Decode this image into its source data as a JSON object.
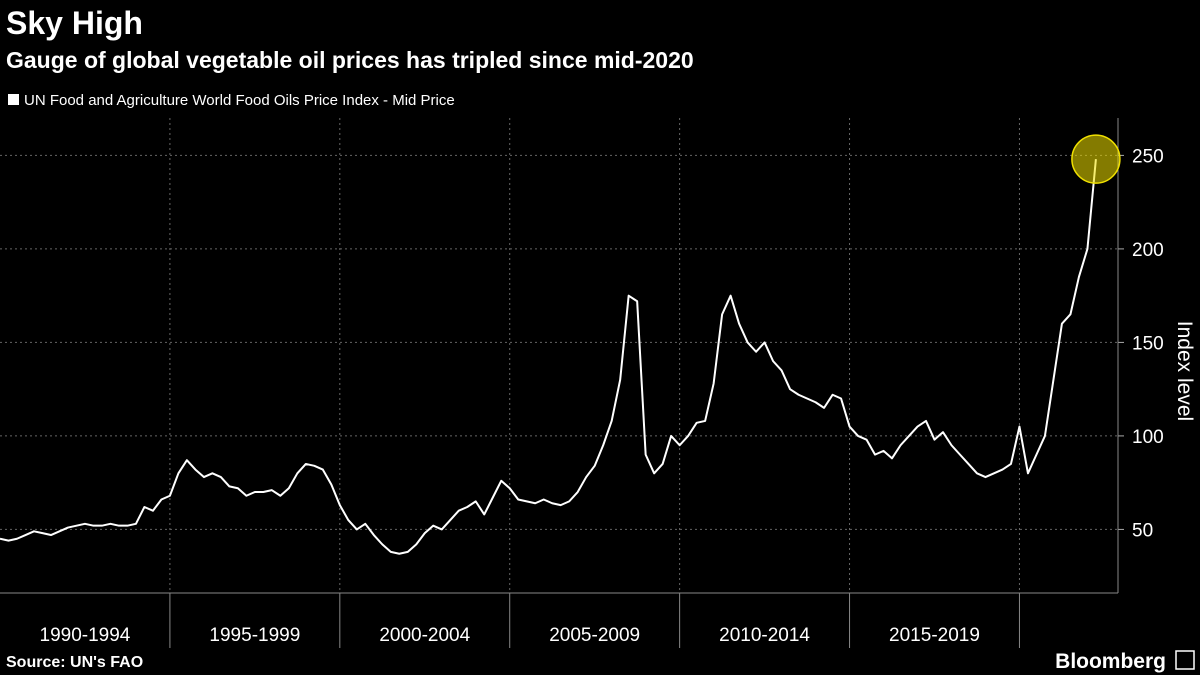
{
  "chart_data": {
    "type": "line",
    "title": "Sky High",
    "subtitle": "Gauge of global vegetable oil prices has tripled since mid-2020",
    "y_axis_label": "Index level",
    "source": "Source: UN's FAO",
    "brand": "Bloomberg",
    "xlim": [
      1990,
      2022.9
    ],
    "ylim": [
      16,
      270
    ],
    "yticks": [
      50,
      100,
      150,
      200,
      250
    ],
    "grid": true,
    "x_periods": [
      {
        "label": "1990-1994",
        "start": 1990,
        "end": 1995
      },
      {
        "label": "1995-1999",
        "start": 1995,
        "end": 2000
      },
      {
        "label": "2000-2004",
        "start": 2000,
        "end": 2005
      },
      {
        "label": "2005-2009",
        "start": 2005,
        "end": 2010
      },
      {
        "label": "2010-2014",
        "start": 2010,
        "end": 2015
      },
      {
        "label": "2015-2019",
        "start": 2015,
        "end": 2020
      }
    ],
    "highlight_color": "#f0e000",
    "x": [
      1990,
      1990.25,
      1990.5,
      1990.75,
      1991,
      1991.25,
      1991.5,
      1991.75,
      1992,
      1992.25,
      1992.5,
      1992.75,
      1993,
      1993.25,
      1993.5,
      1993.75,
      1994,
      1994.25,
      1994.5,
      1994.75,
      1995,
      1995.25,
      1995.5,
      1995.75,
      1996,
      1996.25,
      1996.5,
      1996.75,
      1997,
      1997.25,
      1997.5,
      1997.75,
      1998,
      1998.25,
      1998.5,
      1998.75,
      1999,
      1999.25,
      1999.5,
      1999.75,
      2000,
      2000.25,
      2000.5,
      2000.75,
      2001,
      2001.25,
      2001.5,
      2001.75,
      2002,
      2002.25,
      2002.5,
      2002.75,
      2003,
      2003.25,
      2003.5,
      2003.75,
      2004,
      2004.25,
      2004.5,
      2004.75,
      2005,
      2005.25,
      2005.5,
      2005.75,
      2006,
      2006.25,
      2006.5,
      2006.75,
      2007,
      2007.25,
      2007.5,
      2007.75,
      2008,
      2008.25,
      2008.5,
      2008.75,
      2009,
      2009.25,
      2009.5,
      2009.75,
      2010,
      2010.25,
      2010.5,
      2010.75,
      2011,
      2011.25,
      2011.5,
      2011.75,
      2012,
      2012.25,
      2012.5,
      2012.75,
      2013,
      2013.25,
      2013.5,
      2013.75,
      2014,
      2014.25,
      2014.5,
      2014.75,
      2015,
      2015.25,
      2015.5,
      2015.75,
      2016,
      2016.25,
      2016.5,
      2016.75,
      2017,
      2017.25,
      2017.5,
      2017.75,
      2018,
      2018.25,
      2018.5,
      2018.75,
      2019,
      2019.25,
      2019.5,
      2019.75,
      2020,
      2020.25,
      2020.5,
      2020.75,
      2021,
      2021.25,
      2021.5,
      2021.75,
      2022,
      2022.25
    ],
    "series": [
      {
        "name": "UN Food and Agriculture World Food Oils Price Index - Mid Price",
        "color": "#ffffff",
        "values": [
          45,
          44,
          45,
          47,
          49,
          48,
          47,
          49,
          51,
          52,
          53,
          52,
          52,
          53,
          52,
          52,
          53,
          62,
          60,
          66,
          68,
          80,
          87,
          82,
          78,
          80,
          78,
          73,
          72,
          68,
          70,
          70,
          71,
          68,
          72,
          80,
          85,
          84,
          82,
          74,
          63,
          55,
          50,
          53,
          47,
          42,
          38,
          37,
          38,
          42,
          48,
          52,
          50,
          55,
          60,
          62,
          65,
          58,
          67,
          76,
          72,
          66,
          65,
          64,
          66,
          64,
          63,
          65,
          70,
          78,
          84,
          95,
          108,
          130,
          175,
          172,
          90,
          80,
          85,
          100,
          95,
          100,
          107,
          108,
          128,
          165,
          175,
          160,
          150,
          145,
          150,
          140,
          135,
          125,
          122,
          120,
          118,
          115,
          122,
          120,
          105,
          100,
          98,
          90,
          92,
          88,
          95,
          100,
          105,
          108,
          98,
          102,
          95,
          90,
          85,
          80,
          78,
          80,
          82,
          85,
          105,
          80,
          90,
          100,
          130,
          160,
          165,
          185,
          200,
          248
        ]
      }
    ]
  }
}
